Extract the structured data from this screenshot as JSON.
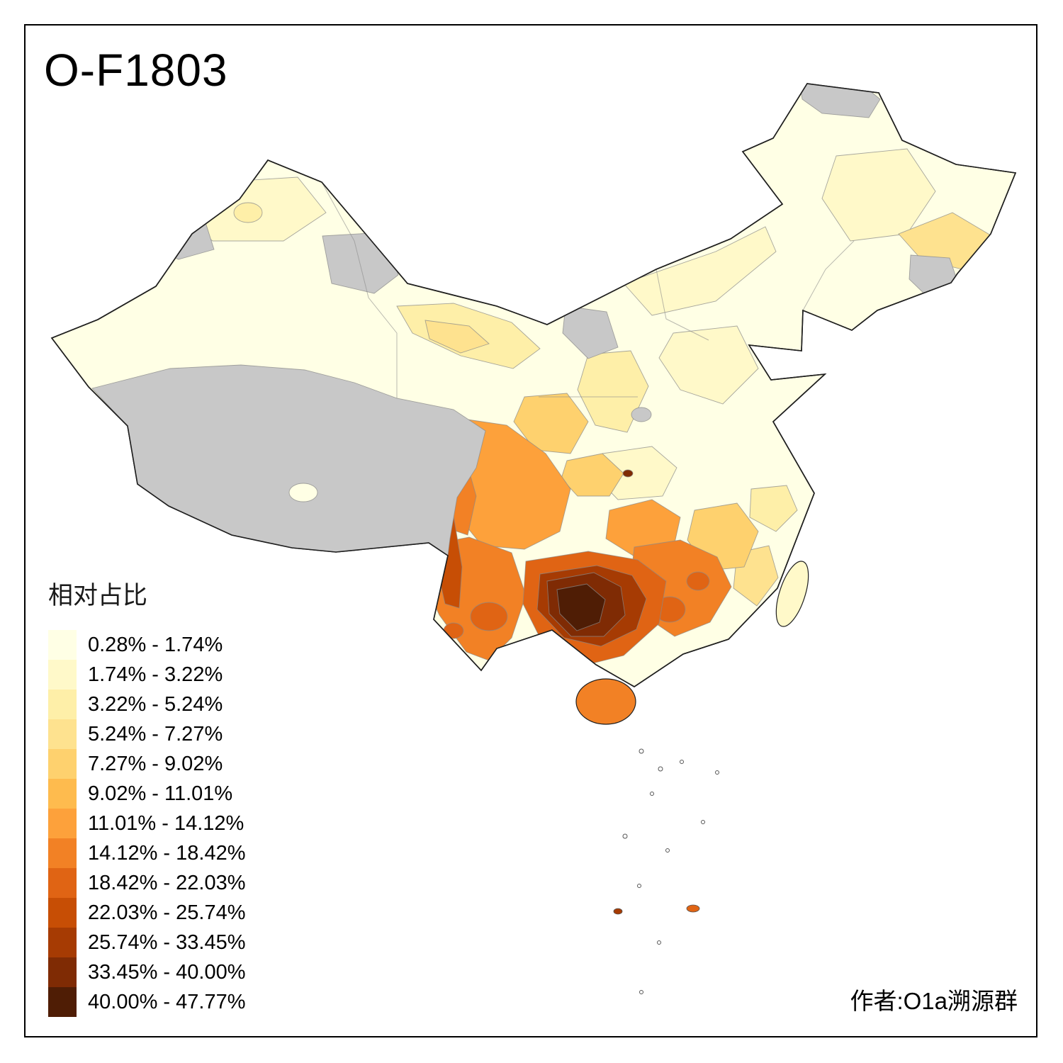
{
  "title": "O-F1803",
  "attribution": "作者:O1a溯源群",
  "legend": {
    "title": "相对占比",
    "classes": [
      {
        "label": "0.28% - 1.74%",
        "color": "#FFFFE5"
      },
      {
        "label": "1.74% - 3.22%",
        "color": "#FFF9C9"
      },
      {
        "label": "3.22% - 5.24%",
        "color": "#FEEFA8"
      },
      {
        "label": "5.24% - 7.27%",
        "color": "#FEE28F"
      },
      {
        "label": "7.27% - 9.02%",
        "color": "#FED16E"
      },
      {
        "label": "9.02% - 11.01%",
        "color": "#FEBB4E"
      },
      {
        "label": "11.01% - 14.12%",
        "color": "#FDA13B"
      },
      {
        "label": "14.12% - 18.42%",
        "color": "#F28125"
      },
      {
        "label": "18.42% - 22.03%",
        "color": "#E06414"
      },
      {
        "label": "22.03% - 25.74%",
        "color": "#C74E05"
      },
      {
        "label": "25.74% - 33.45%",
        "color": "#A63B03"
      },
      {
        "label": "33.45% - 40.00%",
        "color": "#7F2B04"
      },
      {
        "label": "40.00% - 47.77%",
        "color": "#4F1D05"
      }
    ]
  },
  "map": {
    "no_data_color": "#C8C8C8",
    "outline_color": "#1f1f1f",
    "inner_border_color": "#8a8a8a",
    "sea_color": "#FFFFFF",
    "regions": {
      "china-base": 1,
      "xinjiang-north-patch": 2,
      "xinjiang-spot": 3,
      "ne-plain-patch": 2,
      "inner-mongolia-patch": 2,
      "north-china-patch": 2,
      "hubei-patch": 2,
      "central-plain-patch": 3,
      "gansu-band": 3,
      "zhejiang-patch": 3,
      "gansu-inner": 4,
      "ne-east-patch": 4,
      "fujian-coast-patch": 4,
      "shaanxi-south-blob": 5,
      "chongqing-patch": 5,
      "jiangxi-patch": 5,
      "hunan-central-patch": 7,
      "sichuan-west": 7,
      "sichuan-deep-west": 8,
      "yunnan-main": 8,
      "hunan-guangdong": 8,
      "hainan": 8,
      "yunnan-spot-a": 9,
      "yunnan-spot-b": 9,
      "guangdong-spot-a": 9,
      "guangdong-spot-b": 9,
      "gzgx-outer": 9,
      "scs-islet-orange": 9,
      "nujiang-band": 10,
      "gzgx-mid": 11,
      "scs-islet-dark": 11,
      "gzgx-core": 12,
      "chongqing-dot": 12,
      "gzgx-darkest": 13,
      "taiwan": 2,
      "qaidam-spot": 1,
      "nodata-tibet": "nodata",
      "nodata-east-xinjiang": "nodata",
      "nodata-ili": "nodata",
      "nodata-alxa": "nodata",
      "nodata-daxinganling": "nodata",
      "nodata-yanbian": "nodata",
      "nodata-ningxia-spot": "nodata"
    }
  }
}
